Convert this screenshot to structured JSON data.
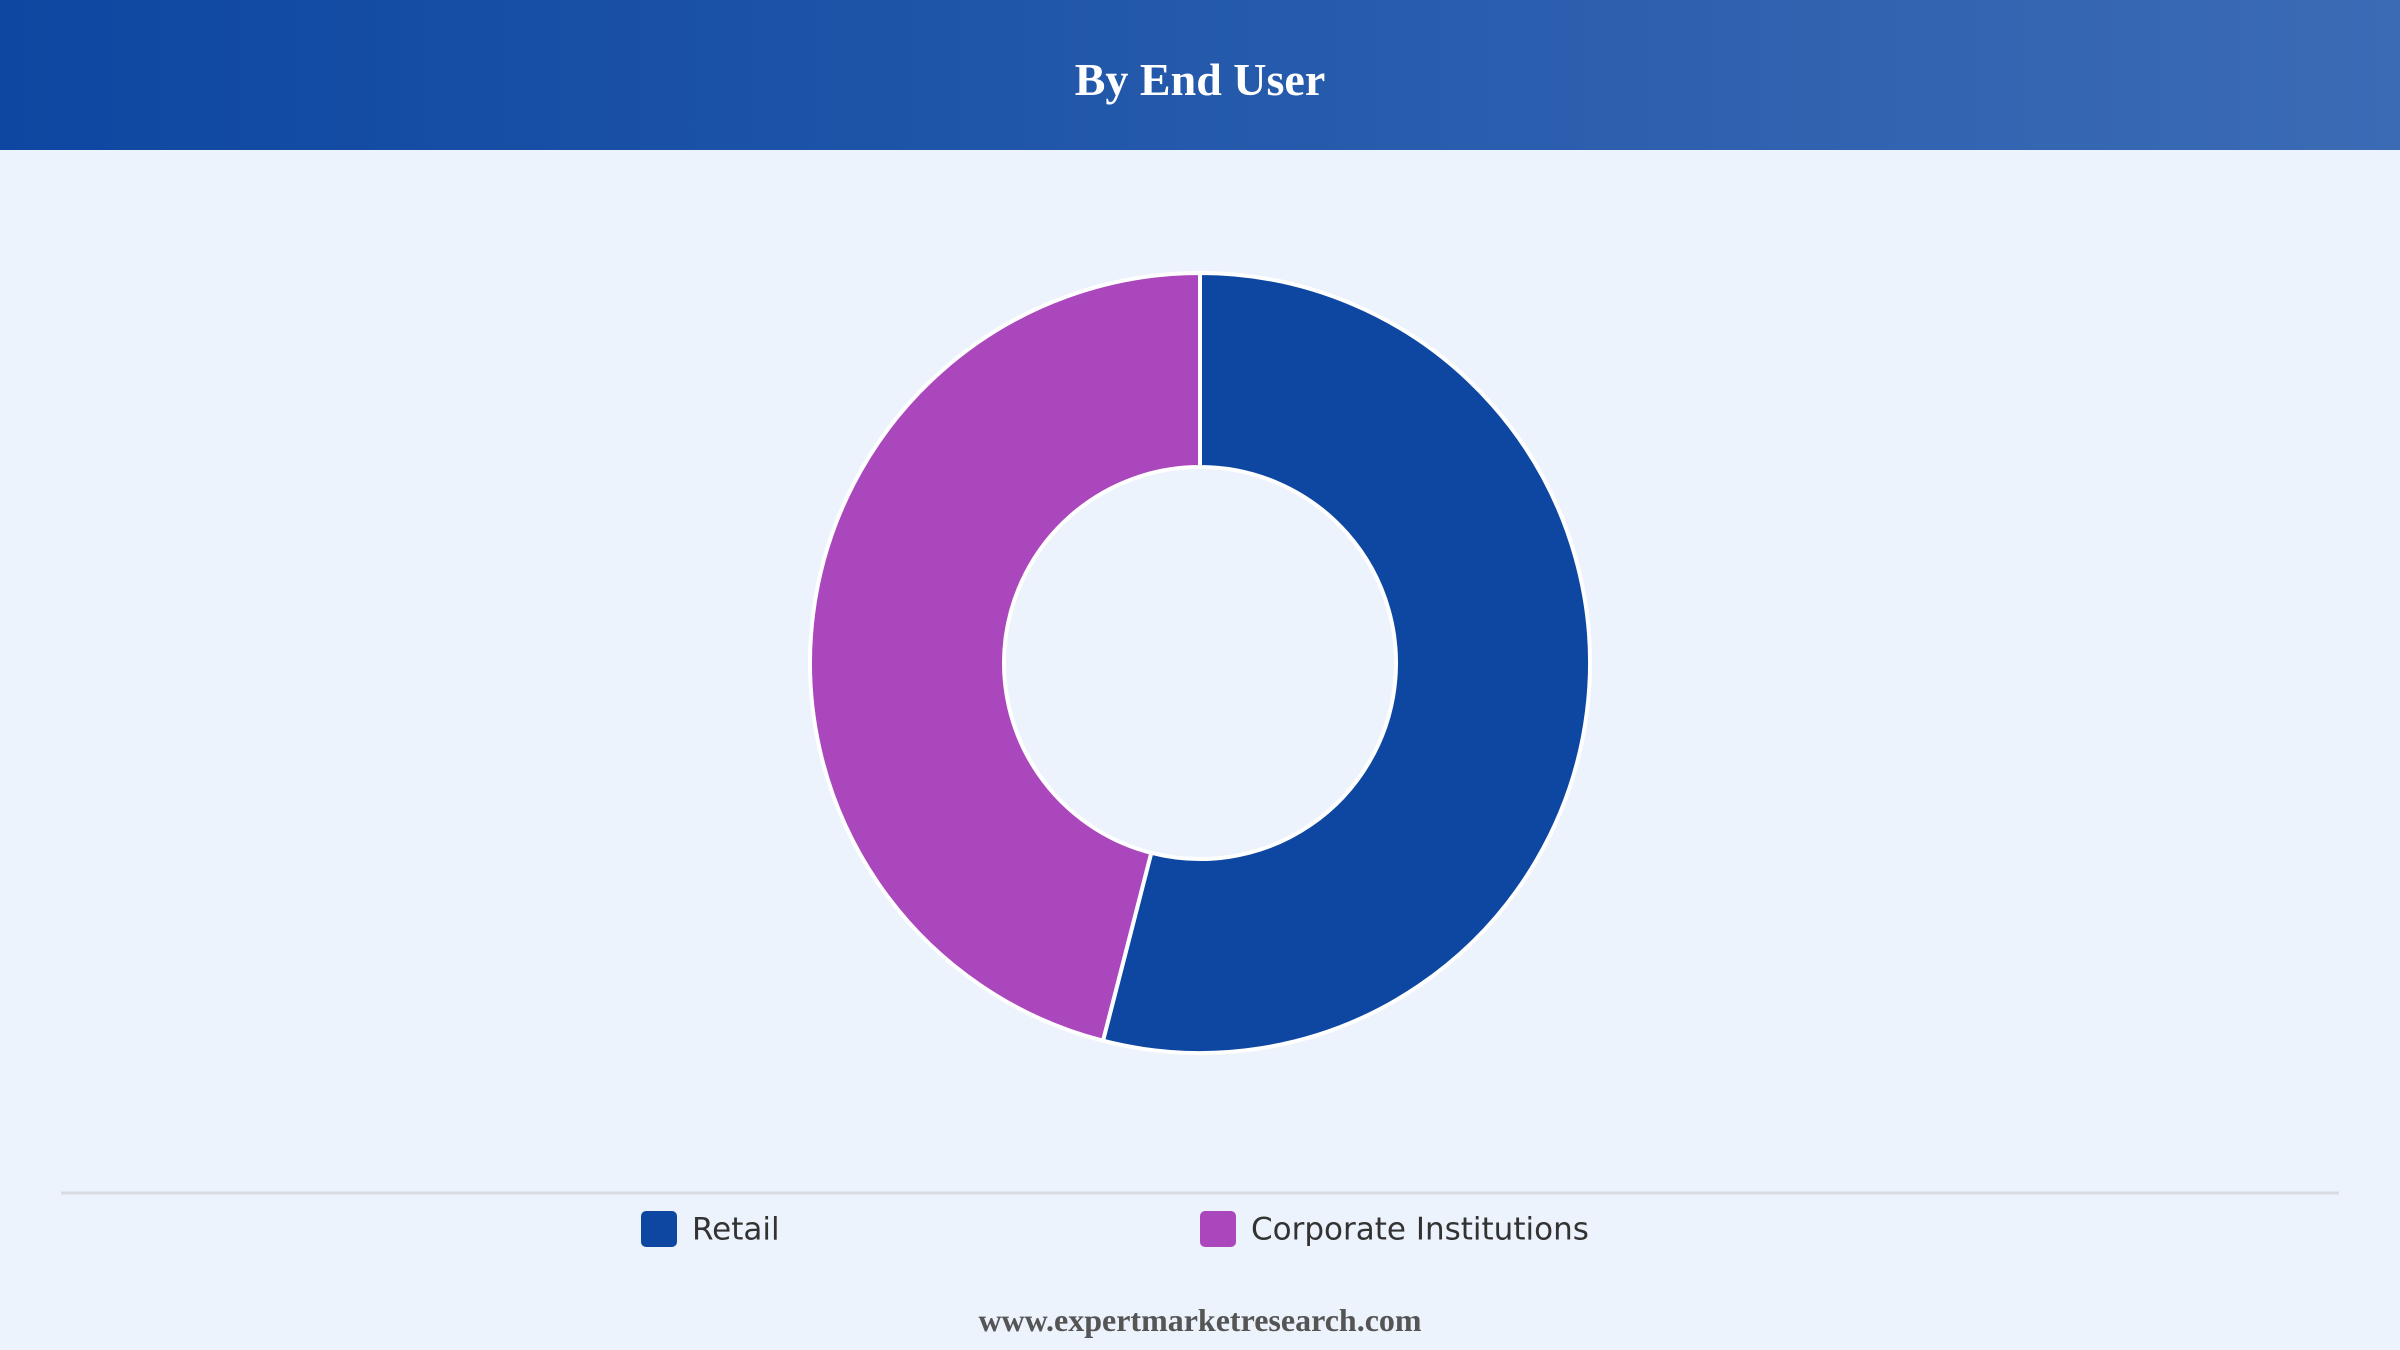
{
  "header": {
    "title": "By End User"
  },
  "chart_data": {
    "type": "donut",
    "categories": [
      "Retail",
      "Corporate Institutions"
    ],
    "values": [
      54,
      46
    ],
    "colors": [
      "#0d47a1",
      "#ab47bc"
    ],
    "legend": "bottom"
  },
  "footer": {
    "text": "www.expertmarketresearch.com"
  }
}
